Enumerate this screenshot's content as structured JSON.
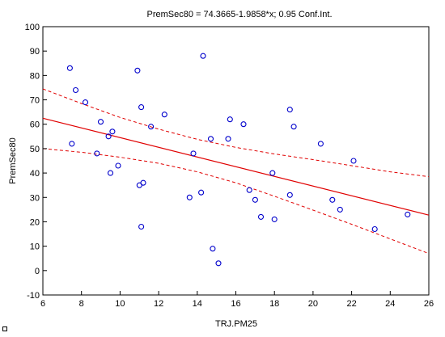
{
  "chart_data": {
    "type": "scatter",
    "title": "PremSec80 = 74.3665-1.9858*x; 0.95 Conf.Int.",
    "xlabel": "TRJ.PM25",
    "ylabel": "PremSec80",
    "xlim": [
      6,
      26
    ],
    "ylim": [
      -10,
      100
    ],
    "xticks": [
      6,
      8,
      10,
      12,
      14,
      16,
      18,
      20,
      22,
      24,
      26
    ],
    "yticks": [
      -10,
      0,
      10,
      20,
      30,
      40,
      50,
      60,
      70,
      80,
      90,
      100
    ],
    "grid": false,
    "fit": {
      "intercept": 74.3665,
      "slope": -1.9858,
      "color": "#e00000"
    },
    "confidence_band": {
      "x": [
        6,
        8,
        10,
        12,
        14,
        16,
        18,
        20,
        22,
        24,
        26
      ],
      "upper": [
        74.5,
        68.5,
        62.8,
        58.0,
        53.8,
        50.5,
        47.8,
        45.5,
        43.0,
        40.5,
        38.5
      ],
      "lower": [
        50.0,
        48.5,
        46.5,
        44.0,
        40.5,
        36.0,
        30.5,
        24.8,
        19.0,
        13.0,
        7.0
      ]
    },
    "points": {
      "marker_color": "#0000cc",
      "x": [
        7.4,
        7.5,
        7.7,
        8.2,
        8.8,
        9.0,
        9.4,
        9.5,
        9.6,
        9.9,
        10.9,
        11.0,
        11.1,
        11.1,
        11.2,
        11.6,
        12.3,
        13.6,
        13.8,
        14.2,
        14.3,
        14.7,
        14.8,
        15.1,
        15.6,
        15.7,
        16.4,
        16.7,
        17.0,
        17.3,
        17.9,
        18.0,
        18.8,
        18.8,
        19.0,
        20.4,
        21.0,
        21.4,
        22.1,
        23.2,
        24.9
      ],
      "y": [
        83,
        52,
        74,
        69,
        48,
        61,
        55,
        40,
        57,
        43,
        82,
        35,
        67,
        18,
        36,
        59,
        64,
        30,
        48,
        32,
        88,
        54,
        9,
        3,
        54,
        62,
        60,
        33,
        29,
        22,
        40,
        21,
        66,
        31,
        59,
        52,
        29,
        25,
        45,
        17,
        23
      ]
    }
  }
}
